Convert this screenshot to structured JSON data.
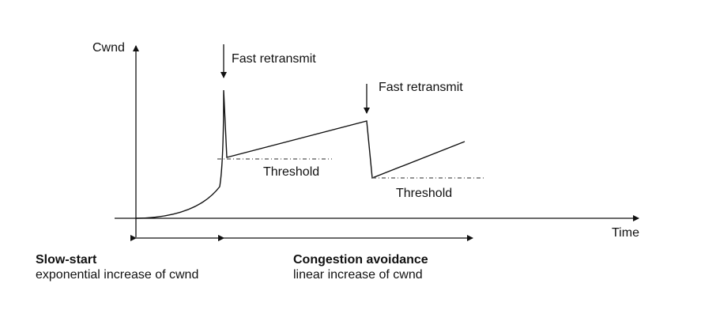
{
  "axes": {
    "y_label": "Cwnd",
    "x_label": "Time"
  },
  "annotations": {
    "fast_retransmit_1": "Fast retransmit",
    "fast_retransmit_2": "Fast retransmit",
    "threshold_1": "Threshold",
    "threshold_2": "Threshold"
  },
  "phases": {
    "slow_start": {
      "title": "Slow-start",
      "description": "exponential increase of cwnd"
    },
    "congestion_avoidance": {
      "title": "Congestion avoidance",
      "description": "linear increase of cwnd"
    }
  },
  "colors": {
    "line": "#111111",
    "threshold": "#555555",
    "background": "#ffffff"
  }
}
